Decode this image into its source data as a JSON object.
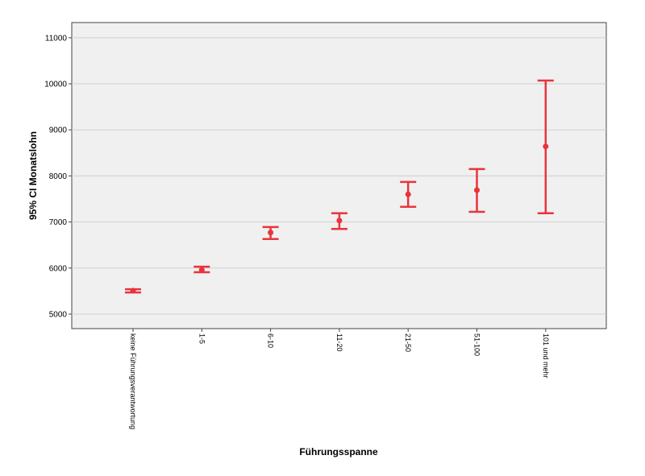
{
  "chart_data": {
    "type": "errorbar",
    "x_label": "Führungsspanne",
    "y_label": "95% CI Monatslohn",
    "categories": [
      "keine Führungsverantwortung",
      "1-5",
      "6-10",
      "11-20",
      "21-50",
      "51-100",
      "101 und mehr"
    ],
    "values": [
      5510,
      5960,
      6770,
      7030,
      7600,
      7690,
      8640
    ],
    "lower": [
      5470,
      5910,
      6630,
      6850,
      7330,
      7220,
      7190
    ],
    "upper": [
      5540,
      6030,
      6890,
      7190,
      7870,
      8150,
      10070
    ],
    "color": "#e8343c",
    "ylim": [
      4685,
      11330
    ],
    "yticks": [
      5000,
      6000,
      7000,
      8000,
      9000,
      10000,
      11000
    ],
    "grid": true
  }
}
